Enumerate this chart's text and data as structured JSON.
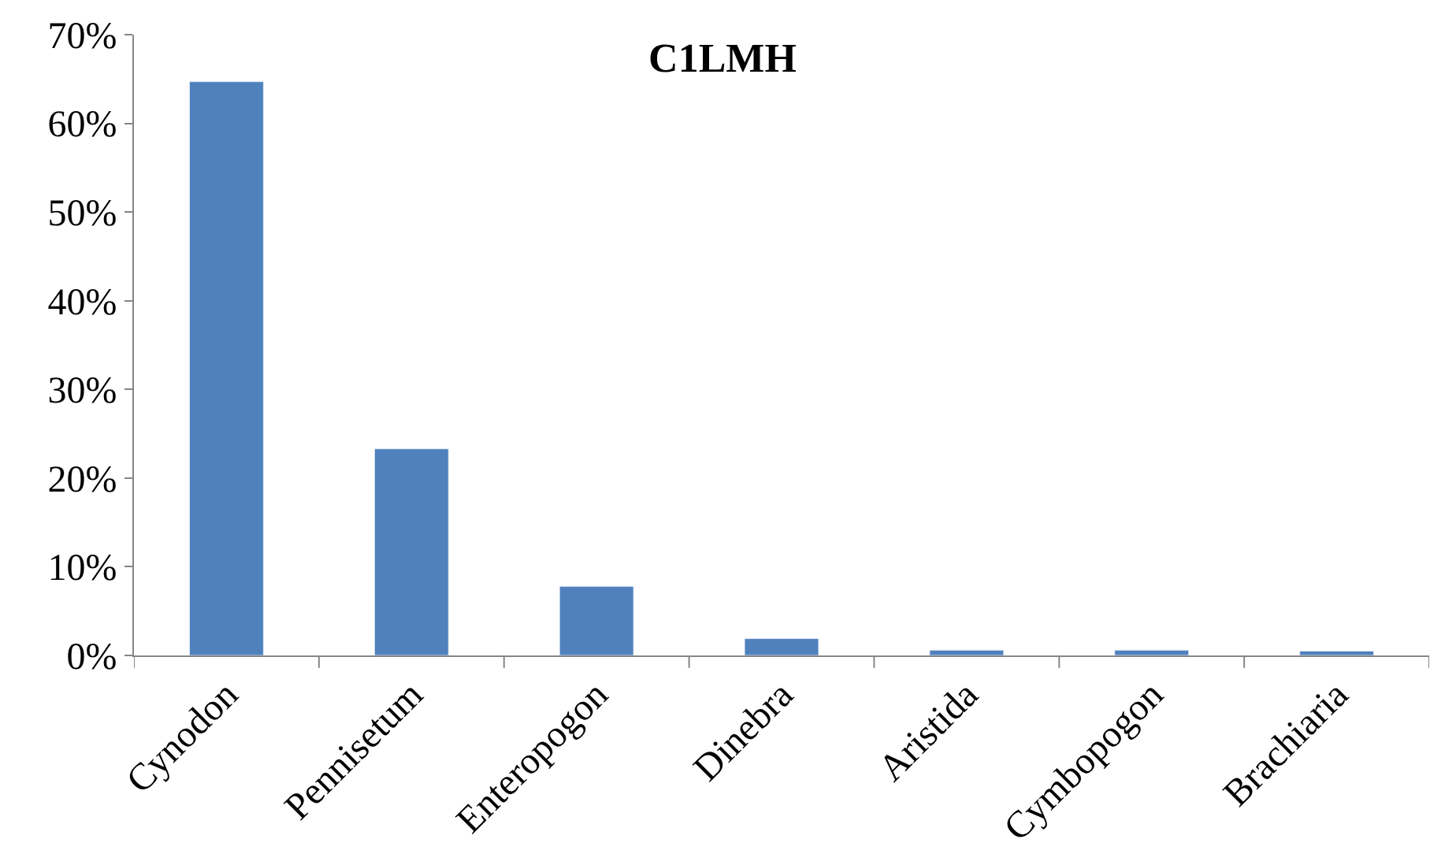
{
  "chart_data": {
    "type": "bar",
    "title": "C1LMH",
    "categories": [
      "Cynodon",
      "Pennisetum",
      "Enteropogon",
      "Dinebra",
      "Aristida",
      "Cymbopogon",
      "Brachiaria"
    ],
    "values": [
      64.7,
      23.3,
      7.8,
      1.9,
      0.6,
      0.6,
      0.5
    ],
    "color": "#4f81bd",
    "ylim": [
      0,
      70
    ],
    "yticks": [
      {
        "value": 0,
        "label": "0%"
      },
      {
        "value": 10,
        "label": "10%"
      },
      {
        "value": 20,
        "label": "20%"
      },
      {
        "value": 30,
        "label": "30%"
      },
      {
        "value": 40,
        "label": "40%"
      },
      {
        "value": 50,
        "label": "50%"
      },
      {
        "value": 60,
        "label": "60%"
      },
      {
        "value": 70,
        "label": "70%"
      }
    ]
  }
}
